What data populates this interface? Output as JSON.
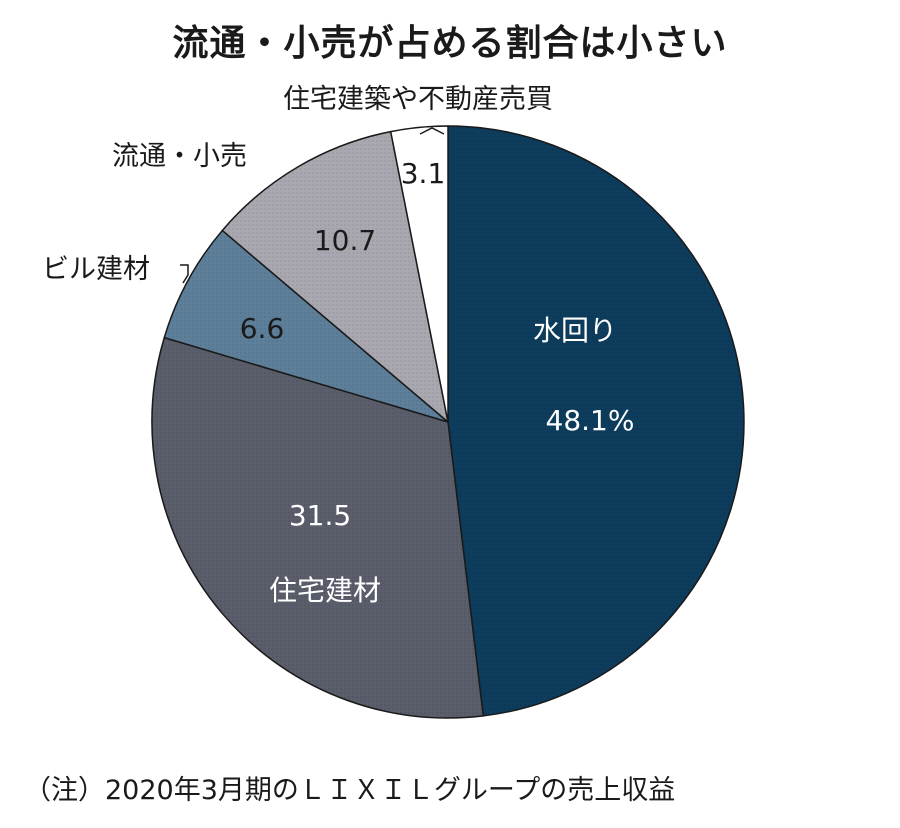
{
  "title": "流通・小売が占める割合は小さい",
  "note": "（注）2020年3月期のＬＩＸＩＬグループの売上収益",
  "chart_data": {
    "type": "pie",
    "title": "流通・小売が占める割合は小さい",
    "unit": "%",
    "slices": [
      {
        "label": "水回り",
        "value": 48.1,
        "value_text": "48.1%",
        "color": "#0d3c5c"
      },
      {
        "label": "住宅建材",
        "value": 31.5,
        "value_text": "31.5",
        "color": "#5a5d6a"
      },
      {
        "label": "ビル建材",
        "value": 6.6,
        "value_text": "6.6",
        "color": "#5d7f99"
      },
      {
        "label": "流通・小売",
        "value": 10.7,
        "value_text": "10.7",
        "color": "#a9a8b1"
      },
      {
        "label": "住宅建築や不動産売買",
        "value": 3.1,
        "value_text": "3.1",
        "color": "#ffffff"
      }
    ]
  }
}
